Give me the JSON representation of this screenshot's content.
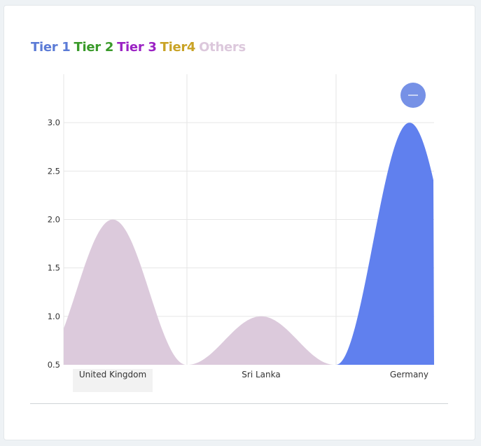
{
  "legend": {
    "items": [
      {
        "label": "Tier 1",
        "color": "#5b7bd6"
      },
      {
        "label": "Tier 2",
        "color": "#3a9a2a"
      },
      {
        "label": "Tier 3",
        "color": "#9b22c4"
      },
      {
        "label": "Tier4",
        "color": "#c9a326"
      },
      {
        "label": "Others",
        "color": "#dcc8dc"
      }
    ]
  },
  "chart_data": {
    "type": "area",
    "categories": [
      "United Kingdom",
      "Sri Lanka",
      "Germany"
    ],
    "series": [
      {
        "name": "Others",
        "color": "#dccadc",
        "values": [
          2.0,
          1.0,
          0
        ]
      },
      {
        "name": "Tier 1",
        "color": "#6080ee",
        "values": [
          0,
          0,
          3.0
        ]
      }
    ],
    "yticks": [
      0.5,
      1.0,
      1.5,
      2.0,
      2.5,
      3.0
    ],
    "ylim": [
      0.5,
      3.5
    ],
    "grid": true,
    "zoom_button": {
      "icon": "minus-icon",
      "color": "#7691e6"
    }
  }
}
